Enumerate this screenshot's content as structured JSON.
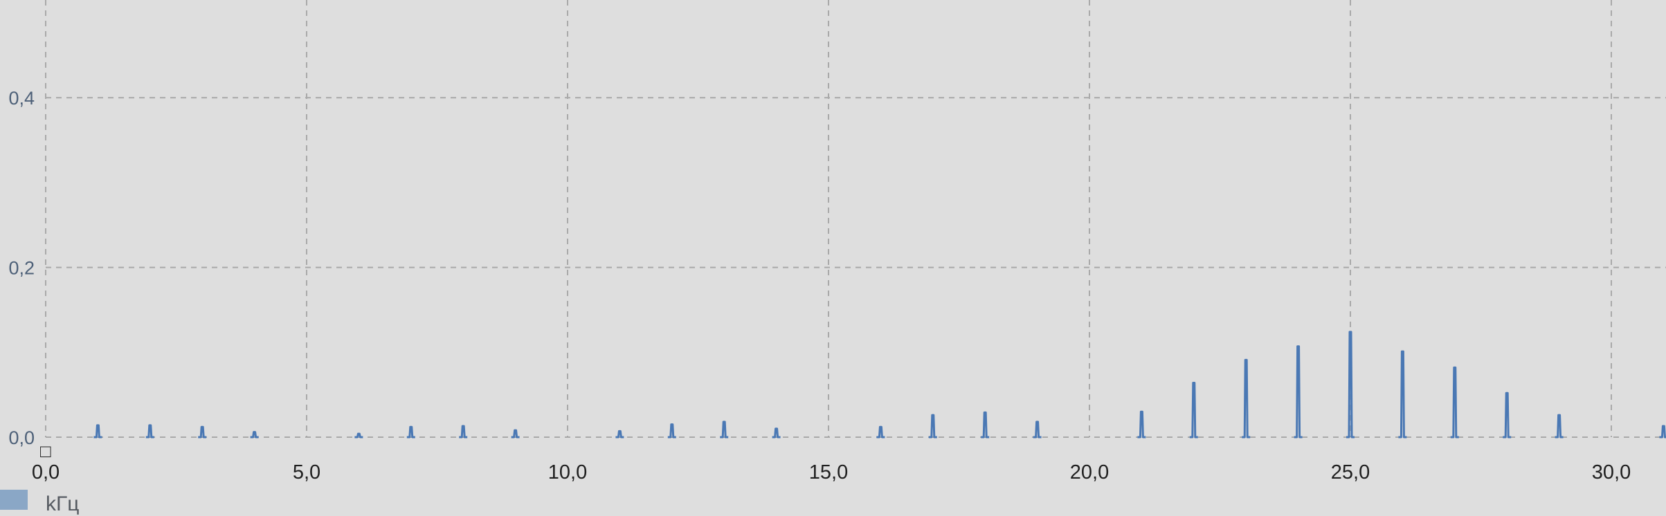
{
  "chart_data": {
    "type": "bar",
    "title": "",
    "xlabel": "kГц",
    "ylabel": "",
    "xlim": [
      0.0,
      31.3
    ],
    "ylim": [
      0.0,
      0.51
    ],
    "x_ticks": [
      "0,0",
      "5,0",
      "10,0",
      "15,0",
      "20,0",
      "25,0",
      "30,0"
    ],
    "x_tick_values": [
      0,
      5,
      10,
      15,
      20,
      25,
      30
    ],
    "y_ticks": [
      "0,0",
      "0,2",
      "0,4"
    ],
    "y_tick_values": [
      0.0,
      0.2,
      0.4
    ],
    "grid": true,
    "legend": "none",
    "series": [
      {
        "color": "#4a78b4",
        "x": [
          1,
          2,
          3,
          4,
          6,
          7,
          8,
          9,
          11,
          12,
          13,
          14,
          16,
          17,
          18,
          19,
          21,
          22,
          23,
          24,
          25,
          26,
          27,
          28,
          29,
          31
        ],
        "values": [
          0.014,
          0.014,
          0.012,
          0.006,
          0.004,
          0.012,
          0.013,
          0.008,
          0.007,
          0.015,
          0.018,
          0.01,
          0.012,
          0.026,
          0.029,
          0.018,
          0.03,
          0.064,
          0.091,
          0.107,
          0.124,
          0.101,
          0.082,
          0.052,
          0.026,
          0.013
        ]
      }
    ]
  },
  "ui": {
    "x_unit": "kГц",
    "y_zero_marker": "□"
  }
}
